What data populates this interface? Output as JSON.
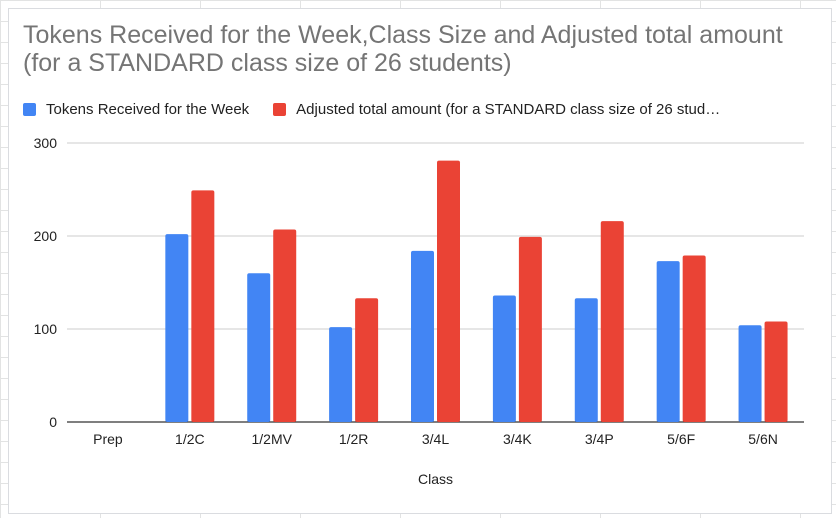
{
  "chart_data": {
    "type": "bar",
    "title": "Tokens Received for the Week,Class Size and Adjusted total amount (for a STANDARD class size of 26 students)",
    "xlabel": "Class",
    "ylabel": "",
    "categories": [
      "Prep",
      "1/2C",
      "1/2MV",
      "1/2R",
      "3/4L",
      "3/4K",
      "3/4P",
      "5/6F",
      "5/6N"
    ],
    "series": [
      {
        "name": "Tokens Received for the Week",
        "color": "#4285f4",
        "values": [
          0,
          202,
          160,
          102,
          184,
          136,
          133,
          173,
          104
        ]
      },
      {
        "name": "Adjusted total amount (for a STANDARD class size of 26 stud…",
        "color": "#ea4335",
        "values": [
          0,
          249,
          207,
          133,
          281,
          199,
          216,
          179,
          108
        ]
      }
    ],
    "ylim": [
      0,
      300
    ],
    "yticks": [
      0,
      100,
      200,
      300
    ],
    "grid": true,
    "legend_position": "top-left"
  }
}
